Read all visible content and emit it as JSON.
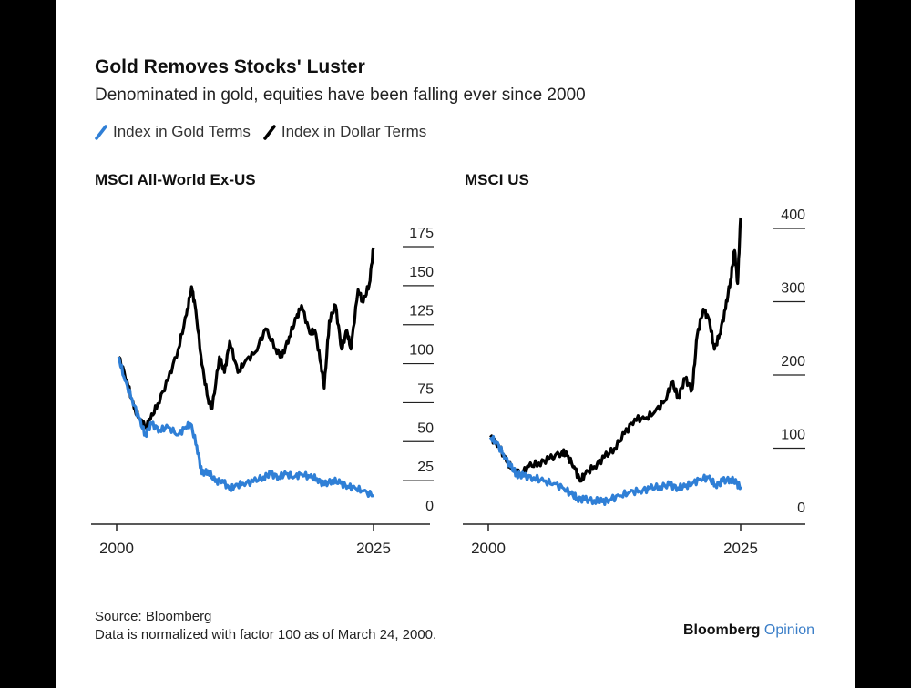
{
  "title": "Gold Removes Stocks' Luster",
  "subtitle": "Denominated in gold, equities have been falling ever since 2000",
  "legend": {
    "gold_label": "Index in Gold Terms",
    "dollar_label": "Index in Dollar Terms"
  },
  "colors": {
    "gold_series": "#2f7fd6",
    "dollar_series": "#000000"
  },
  "footer": {
    "source": "Source: Bloomberg",
    "note": "Data is normalized with factor 100 as of March 24, 2000."
  },
  "brand": {
    "name": "Bloomberg",
    "product": "Opinion"
  },
  "chart_data": [
    {
      "type": "line",
      "title": "MSCI All-World Ex-US",
      "xlim": [
        2000,
        2025
      ],
      "xticks": [
        "2000",
        "2025"
      ],
      "ylim": [
        0,
        175
      ],
      "yticks": [
        "0",
        "25",
        "50",
        "75",
        "100",
        "125",
        "150",
        "175"
      ],
      "legend": "top-left",
      "series": [
        {
          "name": "Index in Dollar Terms",
          "color": "#000000",
          "x": [
            2000.2,
            2001,
            2001.7,
            2002.3,
            2002.8,
            2003.3,
            2004,
            2005,
            2006,
            2006.8,
            2007.3,
            2007.7,
            2008.3,
            2008.9,
            2009.3,
            2010,
            2010.5,
            2011,
            2011.8,
            2012.5,
            2013.5,
            2014.5,
            2015.5,
            2016.1,
            2016.8,
            2017.5,
            2018,
            2018.8,
            2019.3,
            2019.9,
            2020.2,
            2020.7,
            2021.3,
            2021.9,
            2022.4,
            2022.8,
            2023.5,
            2024,
            2024.6,
            2025
          ],
          "y": [
            95,
            80,
            62,
            55,
            50,
            55,
            65,
            80,
            100,
            122,
            140,
            125,
            90,
            68,
            62,
            95,
            85,
            105,
            85,
            92,
            98,
            113,
            100,
            95,
            108,
            120,
            128,
            110,
            112,
            90,
            75,
            118,
            128,
            100,
            112,
            100,
            138,
            130,
            142,
            165
          ]
        },
        {
          "name": "Index in Gold Terms",
          "color": "#2f7fd6",
          "x": [
            2000.2,
            2000.8,
            2001.5,
            2002.2,
            2002.8,
            2003.4,
            2004.2,
            2005,
            2006,
            2006.7,
            2007.2,
            2007.8,
            2008.3,
            2008.9,
            2009.6,
            2010.3,
            2011,
            2011.5,
            2012.3,
            2013.3,
            2014.3,
            2015,
            2015.8,
            2016.5,
            2017.3,
            2018,
            2018.8,
            2019.5,
            2020.2,
            2021,
            2021.8,
            2022.5,
            2023.2,
            2024,
            2025
          ],
          "y": [
            95,
            80,
            68,
            55,
            45,
            52,
            48,
            50,
            45,
            50,
            52,
            38,
            20,
            22,
            15,
            16,
            10,
            12,
            14,
            15,
            18,
            20,
            18,
            20,
            18,
            20,
            18,
            17,
            13,
            16,
            14,
            12,
            11,
            9,
            6
          ]
        }
      ]
    },
    {
      "type": "line",
      "title": "MSCI US",
      "xlim": [
        2000,
        2025
      ],
      "xticks": [
        "2000",
        "2025"
      ],
      "ylim": [
        0,
        400
      ],
      "yticks": [
        "0",
        "100",
        "200",
        "300",
        "400"
      ],
      "legend": "top-left",
      "series": [
        {
          "name": "Index in Dollar Terms",
          "color": "#000000",
          "x": [
            2000.2,
            2001,
            2001.8,
            2002.5,
            2003.2,
            2004,
            2005,
            2006,
            2007.3,
            2007.8,
            2008.5,
            2009.1,
            2009.6,
            2010.5,
            2011.5,
            2012.5,
            2013.5,
            2014.5,
            2015.5,
            2016.5,
            2017.5,
            2018.2,
            2018.8,
            2019.5,
            2020.2,
            2020.7,
            2021.3,
            2021.9,
            2022.4,
            2022.9,
            2023.5,
            2024,
            2024.4,
            2024.7,
            2025
          ],
          "y": [
            95,
            85,
            62,
            50,
            45,
            55,
            60,
            65,
            75,
            70,
            55,
            35,
            45,
            55,
            68,
            80,
            100,
            120,
            120,
            130,
            145,
            170,
            150,
            175,
            160,
            235,
            270,
            255,
            215,
            235,
            270,
            310,
            350,
            305,
            395
          ]
        },
        {
          "name": "Index in Gold Terms",
          "color": "#2f7fd6",
          "x": [
            2000.2,
            2000.8,
            2001.5,
            2002.2,
            2002.8,
            2003.5,
            2004.5,
            2005.5,
            2006.5,
            2007.5,
            2008.2,
            2008.8,
            2009.5,
            2010.5,
            2011.3,
            2012,
            2013,
            2014,
            2015,
            2016,
            2017,
            2018,
            2018.8,
            2019.5,
            2020.2,
            2021,
            2021.8,
            2022.5,
            2023.2,
            2024,
            2024.6,
            2025
          ],
          "y": [
            95,
            88,
            72,
            55,
            45,
            42,
            40,
            35,
            32,
            25,
            18,
            12,
            10,
            9,
            7,
            10,
            15,
            20,
            22,
            25,
            28,
            30,
            26,
            28,
            32,
            38,
            40,
            30,
            35,
            38,
            32,
            28
          ]
        }
      ]
    }
  ]
}
